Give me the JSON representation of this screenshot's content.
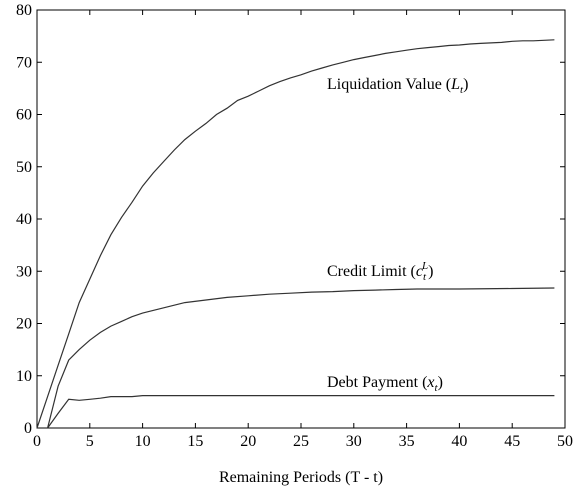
{
  "chart_data": {
    "type": "line",
    "xlabel": "Remaining Periods (T - t)",
    "xlim": [
      0,
      50
    ],
    "ylim": [
      0,
      80
    ],
    "xticks": [
      0,
      5,
      10,
      15,
      20,
      25,
      30,
      35,
      40,
      45,
      50
    ],
    "yticks": [
      0,
      10,
      20,
      30,
      40,
      50,
      60,
      70,
      80
    ],
    "series": [
      {
        "color": "#333333",
        "x": [
          0,
          1,
          2,
          3,
          4,
          5,
          6,
          7,
          8,
          9,
          10,
          11,
          12,
          13,
          14,
          15,
          16,
          17,
          18,
          19,
          20,
          21,
          22,
          23,
          24,
          25,
          26,
          27,
          28,
          29,
          30,
          31,
          32,
          33,
          34,
          35,
          36,
          37,
          38,
          39,
          40,
          41,
          42,
          43,
          44,
          45,
          46,
          47,
          48,
          49
        ],
        "values": [
          0,
          6,
          12,
          18,
          24,
          28.5,
          33,
          37,
          40.3,
          43.2,
          46.3,
          48.8,
          51,
          53.2,
          55.2,
          56.8,
          58.3,
          60,
          61.2,
          62.7,
          63.5,
          64.5,
          65.5,
          66.3,
          67,
          67.6,
          68.3,
          68.9,
          69.5,
          70,
          70.5,
          70.9,
          71.3,
          71.7,
          72,
          72.3,
          72.6,
          72.8,
          73,
          73.2,
          73.3,
          73.5,
          73.6,
          73.7,
          73.8,
          74,
          74.1,
          74.1,
          74.2,
          74.3
        ]
      },
      {
        "color": "#333333",
        "x": [
          1,
          2,
          3,
          4,
          5,
          6,
          7,
          8,
          9,
          10,
          12,
          14,
          16,
          18,
          20,
          22,
          24,
          26,
          28,
          30,
          32,
          34,
          36,
          40,
          45,
          49
        ],
        "values": [
          0,
          8,
          13,
          15,
          16.8,
          18.3,
          19.5,
          20.4,
          21.3,
          22,
          23,
          24,
          24.5,
          25,
          25.3,
          25.6,
          25.8,
          26,
          26.1,
          26.3,
          26.4,
          26.5,
          26.6,
          26.6,
          26.7,
          26.8
        ]
      },
      {
        "color": "#333333",
        "x": [
          1,
          2,
          3,
          4,
          5,
          6,
          7,
          8,
          9,
          10,
          15,
          20,
          30,
          40,
          49
        ],
        "values": [
          0,
          2.8,
          5.5,
          5.3,
          5.5,
          5.7,
          6,
          6,
          6,
          6.2,
          6.2,
          6.2,
          6.2,
          6.2,
          6.2
        ]
      }
    ],
    "annotations": [
      [
        {
          "text": "Liquidation Value ("
        },
        {
          "text": "L",
          "style": "italic"
        },
        {
          "text": "t",
          "style": "sub"
        },
        {
          "text": ")"
        }
      ],
      [
        {
          "text": "Credit Limit ("
        },
        {
          "text": "c",
          "style": "italic"
        },
        {
          "text": "t",
          "style": "sub"
        },
        {
          "text": "L",
          "style": "sup"
        },
        {
          "text": ")"
        }
      ],
      [
        {
          "text": "Debt Payment ("
        },
        {
          "text": "x",
          "style": "italic"
        },
        {
          "text": "t",
          "style": "sub"
        },
        {
          "text": ")"
        }
      ]
    ]
  }
}
